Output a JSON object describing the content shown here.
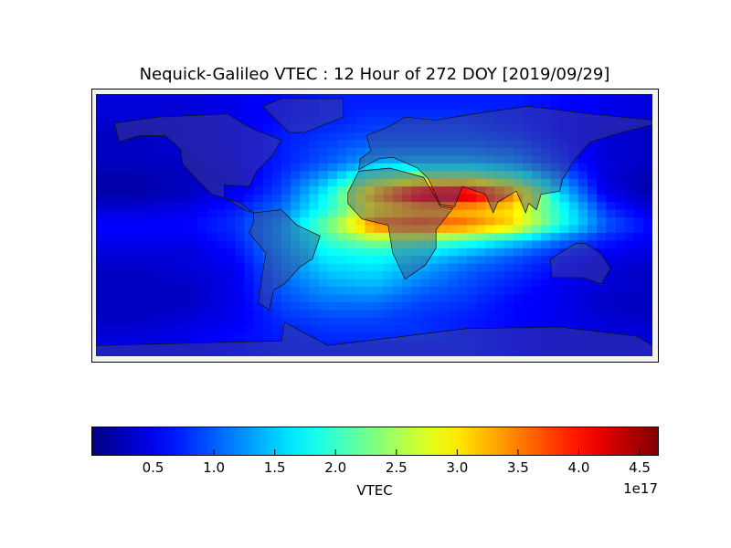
{
  "chart_data": {
    "type": "heatmap",
    "title": "Nequick-Galileo VTEC : 12 Hour of 272 DOY [2019/09/29]",
    "colormap": "jet",
    "colorbar": {
      "label": "VTEC",
      "offset_text": "1e17",
      "orientation": "horizontal",
      "placement": "bottom",
      "range": [
        0.0,
        4.65
      ],
      "ticks": [
        0.5,
        1.0,
        1.5,
        2.0,
        2.5,
        3.0,
        3.5,
        4.0,
        4.5
      ],
      "tick_labels": [
        "0.5",
        "1.0",
        "1.5",
        "2.0",
        "2.5",
        "3.0",
        "3.5",
        "4.0",
        "4.5"
      ]
    },
    "units_scale": 1e+17,
    "lon": [
      -180,
      -150,
      -120,
      -90,
      -60,
      -30,
      0,
      30,
      60,
      90,
      120,
      150,
      180
    ],
    "lat": [
      80,
      70,
      60,
      50,
      40,
      30,
      20,
      10,
      0,
      -10,
      -20,
      -30,
      -40,
      -50,
      -60,
      -70,
      -80
    ],
    "values": [
      [
        0.4,
        0.4,
        0.4,
        0.5,
        0.6,
        0.7,
        0.7,
        0.7,
        0.7,
        0.7,
        0.6,
        0.5,
        0.4
      ],
      [
        0.4,
        0.4,
        0.4,
        0.5,
        0.6,
        0.7,
        0.8,
        0.8,
        0.8,
        0.7,
        0.6,
        0.5,
        0.4
      ],
      [
        0.3,
        0.3,
        0.4,
        0.5,
        0.7,
        0.8,
        0.9,
        0.9,
        0.9,
        0.8,
        0.6,
        0.4,
        0.3
      ],
      [
        0.3,
        0.3,
        0.4,
        0.5,
        0.7,
        0.9,
        1.1,
        1.1,
        1.1,
        1.0,
        0.7,
        0.4,
        0.3
      ],
      [
        0.3,
        0.3,
        0.3,
        0.5,
        0.7,
        1.0,
        1.4,
        1.5,
        1.5,
        1.3,
        0.8,
        0.4,
        0.3
      ],
      [
        0.2,
        0.2,
        0.3,
        0.4,
        0.8,
        1.4,
        2.3,
        2.6,
        2.6,
        2.2,
        1.2,
        0.4,
        0.2
      ],
      [
        0.2,
        0.2,
        0.3,
        0.5,
        0.9,
        1.8,
        3.3,
        4.4,
        4.5,
        3.5,
        1.6,
        0.5,
        0.2
      ],
      [
        0.4,
        0.4,
        0.5,
        0.7,
        1.1,
        1.9,
        2.9,
        3.2,
        3.2,
        3.0,
        1.9,
        0.8,
        0.4
      ],
      [
        0.6,
        0.6,
        0.6,
        0.8,
        1.3,
        2.3,
        3.6,
        3.8,
        3.6,
        3.1,
        1.9,
        1.0,
        0.6
      ],
      [
        0.5,
        0.5,
        0.5,
        0.7,
        1.3,
        2.0,
        2.4,
        2.3,
        2.0,
        1.6,
        1.1,
        0.7,
        0.5
      ],
      [
        0.4,
        0.4,
        0.4,
        0.6,
        1.2,
        1.7,
        1.8,
        1.6,
        1.3,
        1.0,
        0.7,
        0.5,
        0.4
      ],
      [
        0.3,
        0.3,
        0.4,
        0.5,
        1.1,
        1.5,
        1.6,
        1.3,
        1.0,
        0.8,
        0.6,
        0.4,
        0.3
      ],
      [
        0.3,
        0.3,
        0.3,
        0.5,
        1.0,
        1.3,
        1.4,
        1.1,
        0.9,
        0.7,
        0.5,
        0.4,
        0.3
      ],
      [
        0.3,
        0.3,
        0.3,
        0.5,
        0.9,
        1.1,
        1.1,
        0.9,
        0.8,
        0.6,
        0.5,
        0.3,
        0.3
      ],
      [
        0.3,
        0.3,
        0.4,
        0.5,
        0.8,
        0.9,
        0.9,
        0.8,
        0.7,
        0.6,
        0.5,
        0.4,
        0.3
      ],
      [
        0.4,
        0.4,
        0.5,
        0.6,
        0.7,
        0.8,
        0.8,
        0.8,
        0.7,
        0.6,
        0.5,
        0.4,
        0.4
      ],
      [
        0.5,
        0.5,
        0.5,
        0.6,
        0.7,
        0.7,
        0.7,
        0.7,
        0.7,
        0.6,
        0.5,
        0.5,
        0.5
      ]
    ],
    "basemap": "world coastlines and country borders",
    "grid": false
  }
}
